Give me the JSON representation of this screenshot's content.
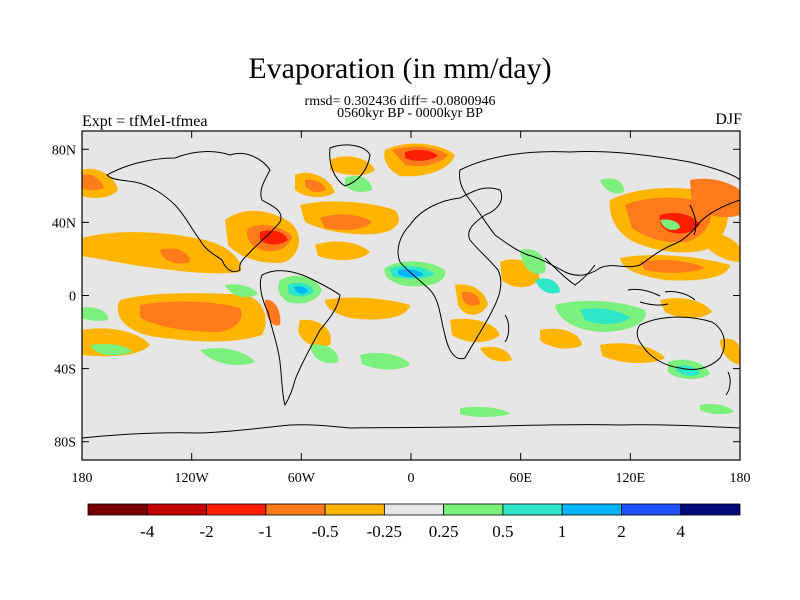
{
  "title": "Evaporation (in mm/day)",
  "stats_line": "rmsd= 0.302436 diff= -0.0800946",
  "period_line": "0560kyr BP - 0000kyr BP",
  "experiment_label": "Expt = tfMeI-tfmea",
  "season_label": "DJF",
  "lat_ticks": [
    {
      "lat": 80,
      "label": "80N"
    },
    {
      "lat": 40,
      "label": "40N"
    },
    {
      "lat": 0,
      "label": "0"
    },
    {
      "lat": -40,
      "label": "40S"
    },
    {
      "lat": -80,
      "label": "80S"
    }
  ],
  "lon_ticks": [
    {
      "lon": -180,
      "label": "180"
    },
    {
      "lon": -120,
      "label": "120W"
    },
    {
      "lon": -60,
      "label": "60W"
    },
    {
      "lon": 0,
      "label": "0"
    },
    {
      "lon": 60,
      "label": "60E"
    },
    {
      "lon": 120,
      "label": "120E"
    },
    {
      "lon": 180,
      "label": "180"
    }
  ],
  "colorbar": {
    "colors": [
      "#7a0000",
      "#c40000",
      "#ff1e00",
      "#ff7a1a",
      "#ffb400",
      "#e6e6e6",
      "#7cf07c",
      "#2ee6c8",
      "#00b4ff",
      "#1e50ff",
      "#000a7a"
    ],
    "labels": [
      "-4",
      "-2",
      "-1",
      "-0.5",
      "-0.25",
      "0.25",
      "0.5",
      "1",
      "2",
      "4"
    ]
  },
  "background_color": "#e6e6e6"
}
